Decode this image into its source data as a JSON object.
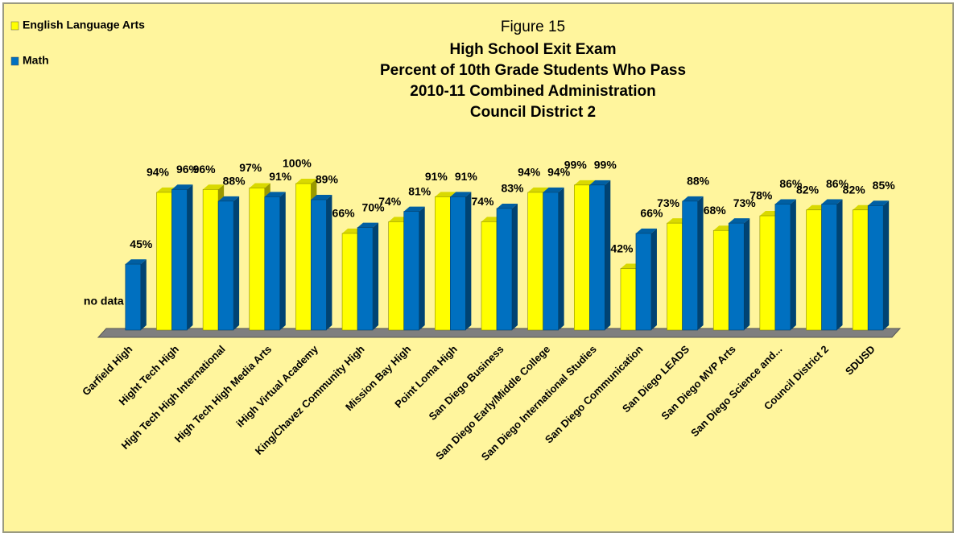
{
  "chart_data": {
    "type": "bar3d",
    "title": "Figure 15",
    "subtitle": [
      "High School Exit Exam",
      "Percent of 10th Grade Students Who Pass",
      "2010-11 Combined Administration",
      "Council District 2"
    ],
    "categories": [
      "Garfield High",
      "Hight Tech High",
      "High Tech High International",
      "High Tech High Media Arts",
      "iHigh Virtual Academy",
      "King/Chavez Community High",
      "Mission Bay High",
      "Point Loma High",
      "San Diego Business",
      "San Diego Early/Middle College",
      "San Diego International Studies",
      "San Diego Communication",
      "San Diego LEADS",
      "San Diego MVP Arts",
      "San Diego Science and...",
      "Council District 2",
      "SDUSD"
    ],
    "series": [
      {
        "name": "English Language Arts",
        "color": "#ffff00",
        "values": [
          null,
          94,
          96,
          97,
          100,
          66,
          74,
          91,
          74,
          94,
          99,
          42,
          73,
          68,
          78,
          82,
          82
        ],
        "value_labels": [
          "no data",
          "94%",
          "96%",
          "97%",
          "100%",
          "66%",
          "74%",
          "91%",
          "74%",
          "94%",
          "99%",
          "42%",
          "73%",
          "68%",
          "78%",
          "82%",
          "82%"
        ]
      },
      {
        "name": "Math",
        "color": "#0070c0",
        "values": [
          45,
          96,
          88,
          91,
          89,
          70,
          81,
          91,
          83,
          94,
          99,
          66,
          88,
          73,
          86,
          86,
          85
        ],
        "value_labels": [
          "45%",
          "96%",
          "88%",
          "91%",
          "89%",
          "70%",
          "81%",
          "91%",
          "83%",
          "94%",
          "99%",
          "66%",
          "88%",
          "73%",
          "86%",
          "86%",
          "85%"
        ]
      }
    ],
    "ylim": [
      0,
      100
    ],
    "legend": "top-left"
  }
}
